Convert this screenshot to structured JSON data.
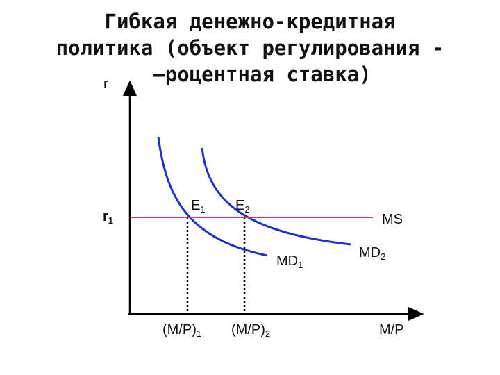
{
  "title": {
    "lines": [
      "Гибкая денежно-кредитная",
      "политика (объект регулирования -",
      "  –роцентная ставка)"
    ]
  },
  "axes": {
    "y_label": "r",
    "x_label": "M/P"
  },
  "levels": {
    "r1_main": "r",
    "r1_sub": "1"
  },
  "curves": {
    "ms_label": "MS",
    "md1_main": "MD",
    "md1_sub": "1",
    "md2_main": "MD",
    "md2_sub": "2"
  },
  "points": {
    "e1_main": "E",
    "e1_sub": "1",
    "e2_main": "E",
    "e2_sub": "2"
  },
  "x_ticks": {
    "q1_main": "(M/P)",
    "q1_sub": "1",
    "q2_main": "(M/P)",
    "q2_sub": "2"
  },
  "colors": {
    "axis": "#000000",
    "md_curves": "#1a2fd8",
    "ms_line": "#e0306e",
    "guides": "#000000"
  }
}
